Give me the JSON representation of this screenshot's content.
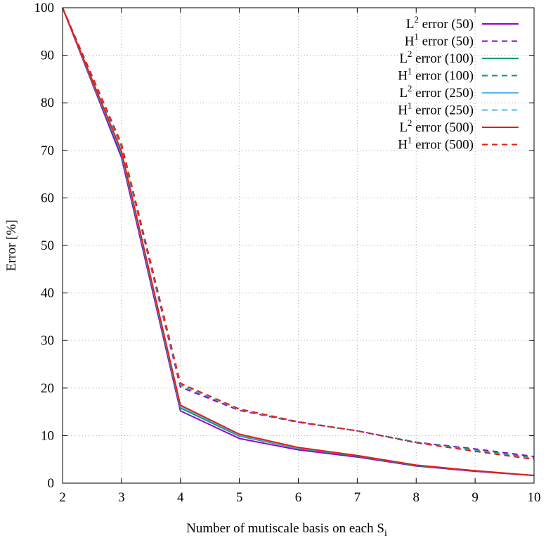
{
  "chart_data": {
    "type": "line",
    "title": "",
    "xlabel": "Number of mutiscale basis on each S",
    "xlabel_sub": "i",
    "ylabel": "Error [%]",
    "xlim": [
      2,
      10
    ],
    "ylim": [
      0,
      100
    ],
    "xticks": [
      2,
      3,
      4,
      5,
      6,
      7,
      8,
      9,
      10
    ],
    "yticks": [
      0,
      10,
      20,
      30,
      40,
      50,
      60,
      70,
      80,
      90,
      100
    ],
    "grid": true,
    "legend_position": "top-right",
    "x": [
      2,
      3,
      4,
      5,
      6,
      7,
      8,
      9,
      10
    ],
    "series": [
      {
        "name": "L2 error (50)",
        "sym": "L",
        "sup": "2",
        "label": "error (50)",
        "color": "#9400d3",
        "dash": false,
        "values": [
          100,
          68.5,
          15.2,
          9.4,
          7.0,
          5.5,
          3.6,
          2.5,
          1.6
        ]
      },
      {
        "name": "H1 error (50)",
        "sym": "H",
        "sup": "1",
        "label": "error (50)",
        "color": "#9400d3",
        "dash": true,
        "values": [
          100,
          70.8,
          20.2,
          15.3,
          12.8,
          11.0,
          8.6,
          7.2,
          5.6
        ]
      },
      {
        "name": "L2 error (100)",
        "sym": "L",
        "sup": "2",
        "label": "error (100)",
        "color": "#009e73",
        "dash": false,
        "values": [
          100,
          69.2,
          15.8,
          9.9,
          7.3,
          5.7,
          3.7,
          2.6,
          1.6
        ]
      },
      {
        "name": "H1 error (100)",
        "sym": "H",
        "sup": "1",
        "label": "error (100)",
        "color": "#009e73",
        "dash": true,
        "values": [
          100,
          71.0,
          20.6,
          15.5,
          12.9,
          11.0,
          8.6,
          7.0,
          5.3
        ]
      },
      {
        "name": "L2 error (250)",
        "sym": "L",
        "sup": "2",
        "label": "error (250)",
        "color": "#56b4e9",
        "dash": false,
        "values": [
          100,
          69.6,
          16.2,
          10.1,
          7.4,
          5.8,
          3.8,
          2.6,
          1.6
        ]
      },
      {
        "name": "H1 error (250)",
        "sym": "H",
        "sup": "1",
        "label": "error (250)",
        "color": "#56b4e9",
        "dash": true,
        "values": [
          100,
          71.2,
          20.8,
          15.5,
          12.9,
          11.0,
          8.5,
          6.8,
          5.1
        ]
      },
      {
        "name": "L2 error (500)",
        "sym": "L",
        "sup": "2",
        "label": "error (500)",
        "color": "#e51e10",
        "dash": false,
        "values": [
          100,
          69.8,
          16.4,
          10.3,
          7.5,
          5.8,
          3.8,
          2.6,
          1.6
        ]
      },
      {
        "name": "H1 error (500)",
        "sym": "H",
        "sup": "1",
        "label": "error (500)",
        "color": "#e51e10",
        "dash": true,
        "values": [
          100,
          71.4,
          21.0,
          15.6,
          12.9,
          11.0,
          8.5,
          6.7,
          5.0
        ]
      }
    ]
  }
}
